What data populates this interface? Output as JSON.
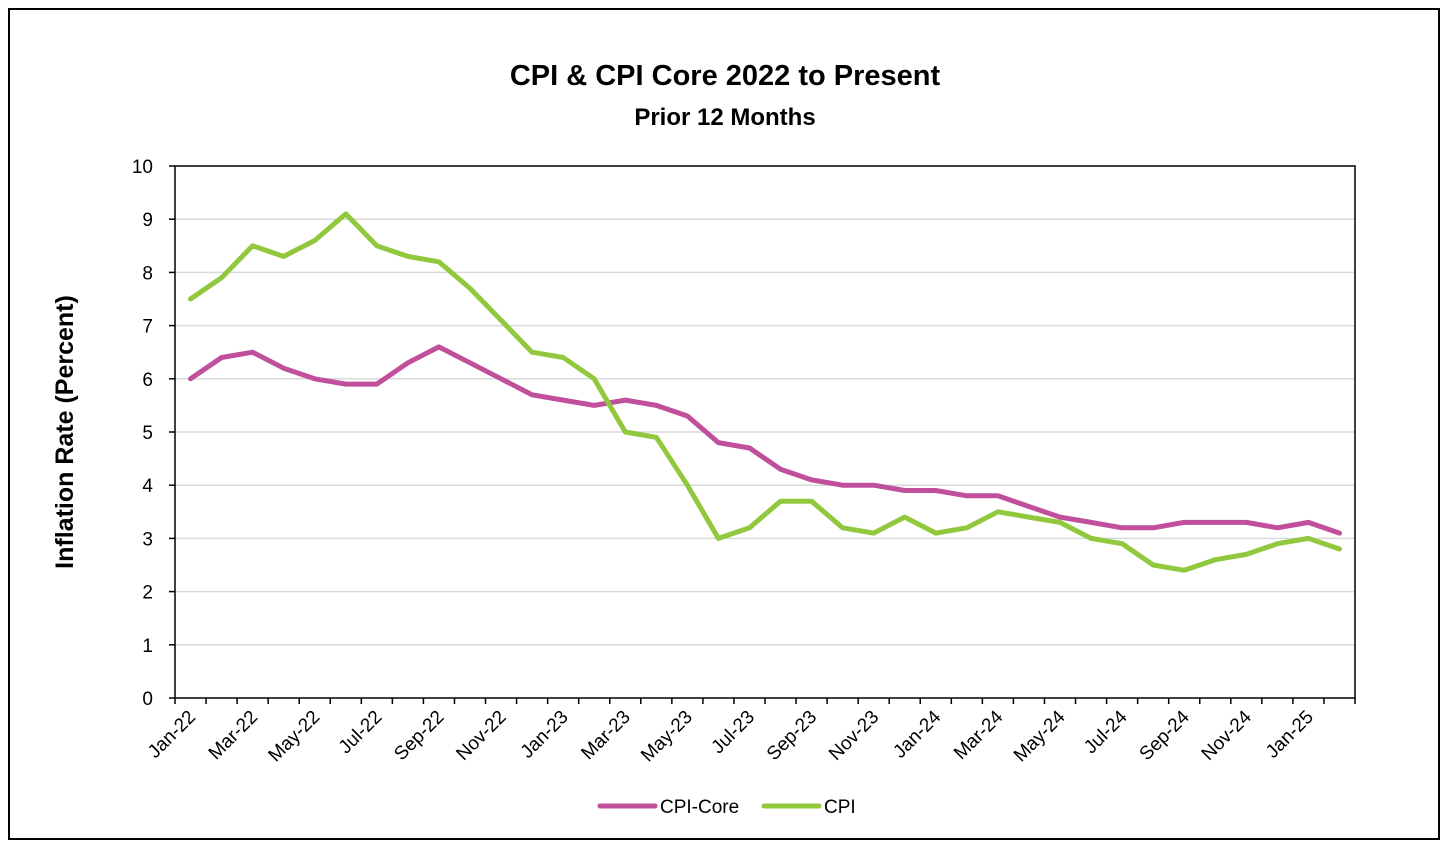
{
  "chart_data": {
    "type": "line",
    "title": "CPI & CPI Core  2022 to Present",
    "subtitle": "Prior 12 Months",
    "xlabel": "",
    "ylabel": "Inflation Rate (Percent)",
    "ylim": [
      0,
      10
    ],
    "yticks": [
      "0",
      "1",
      "2",
      "3",
      "4",
      "5",
      "6",
      "7",
      "8",
      "9",
      "10"
    ],
    "x": [
      "Jan-22",
      "Feb-22",
      "Mar-22",
      "Apr-22",
      "May-22",
      "Jun-22",
      "Jul-22",
      "Aug-22",
      "Sep-22",
      "Oct-22",
      "Nov-22",
      "Dec-22",
      "Jan-23",
      "Feb-23",
      "Mar-23",
      "Apr-23",
      "May-23",
      "Jun-23",
      "Jul-23",
      "Aug-23",
      "Sep-23",
      "Oct-23",
      "Nov-23",
      "Dec-23",
      "Jan-24",
      "Feb-24",
      "Mar-24",
      "Apr-24",
      "May-24",
      "Jun-24",
      "Jul-24",
      "Aug-24",
      "Sep-24",
      "Oct-24",
      "Nov-24",
      "Dec-24",
      "Jan-25",
      "Feb-25"
    ],
    "xtick_labels": [
      "Jan-22",
      "Mar-22",
      "May-22",
      "Jul-22",
      "Sep-22",
      "Nov-22",
      "Jan-23",
      "Mar-23",
      "May-23",
      "Jul-23",
      "Sep-23",
      "Nov-23",
      "Jan-24",
      "Mar-24",
      "May-24",
      "Jul-24",
      "Sep-24",
      "Nov-24",
      "Jan-25"
    ],
    "grid": true,
    "legend_position": "bottom",
    "series": [
      {
        "name": "CPI-Core",
        "color": "#c0509c",
        "values": [
          6.0,
          6.4,
          6.5,
          6.2,
          6.0,
          5.9,
          5.9,
          6.3,
          6.6,
          6.3,
          6.0,
          5.7,
          5.6,
          5.5,
          5.6,
          5.5,
          5.3,
          4.8,
          4.7,
          4.3,
          4.1,
          4.0,
          4.0,
          3.9,
          3.9,
          3.8,
          3.8,
          3.6,
          3.4,
          3.3,
          3.2,
          3.2,
          3.3,
          3.3,
          3.3,
          3.2,
          3.3,
          3.1
        ]
      },
      {
        "name": "CPI",
        "color": "#92c83e",
        "values": [
          7.5,
          7.9,
          8.5,
          8.3,
          8.6,
          9.1,
          8.5,
          8.3,
          8.2,
          7.7,
          7.1,
          6.5,
          6.4,
          6.0,
          5.0,
          4.9,
          4.0,
          3.0,
          3.2,
          3.7,
          3.7,
          3.2,
          3.1,
          3.4,
          3.1,
          3.2,
          3.5,
          3.4,
          3.3,
          3.0,
          2.9,
          2.5,
          2.4,
          2.6,
          2.7,
          2.9,
          3.0,
          2.8
        ]
      }
    ]
  }
}
